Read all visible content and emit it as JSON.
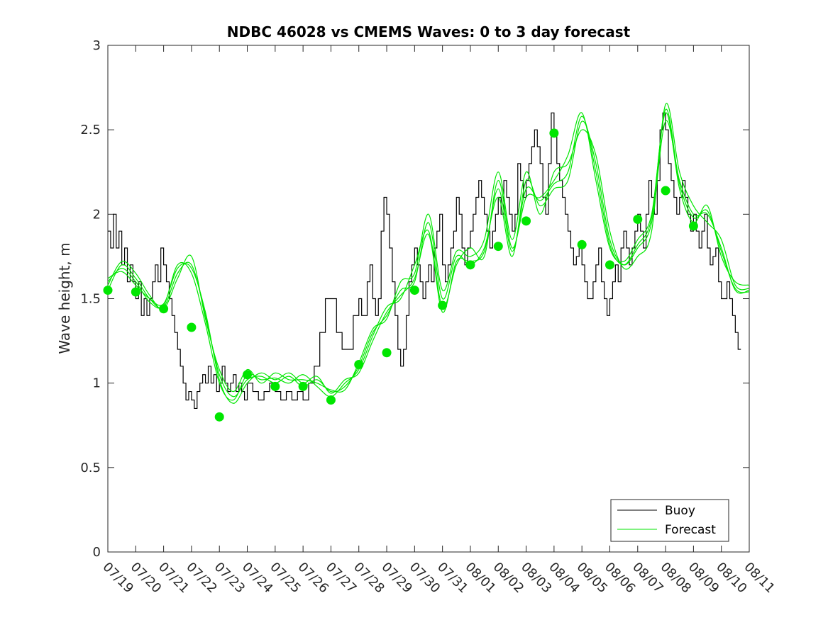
{
  "chart_data": {
    "type": "line",
    "title": "NDBC 46028 vs CMEMS Waves: 0 to 3 day forecast",
    "ylabel": "Wave height, m",
    "xlabel": "",
    "ylim": [
      0,
      3
    ],
    "y_ticks": [
      "0",
      "0.5",
      "1",
      "1.5",
      "2",
      "2.5",
      "3"
    ],
    "x_tick_labels": [
      "07/19",
      "07/20",
      "07/21",
      "07/22",
      "07/23",
      "07/24",
      "07/25",
      "07/26",
      "07/27",
      "07/28",
      "07/29",
      "07/30",
      "07/31",
      "08/01",
      "08/02",
      "08/03",
      "08/04",
      "08/05",
      "08/06",
      "08/07",
      "08/08",
      "08/09",
      "08/10",
      "08/11"
    ],
    "legend": {
      "position": "bottom-right",
      "entries": [
        {
          "name": "Buoy",
          "color": "#000000"
        },
        {
          "name": "Forecast",
          "color": "#00e600"
        }
      ]
    },
    "colors": {
      "buoy": "#000000",
      "forecast": "#00e600",
      "marker": "#00e600"
    },
    "buoy": {
      "day_offsets": [
        0,
        0.1,
        0.2,
        0.3,
        0.4,
        0.5,
        0.6,
        0.7,
        0.8,
        0.9,
        1,
        1.1,
        1.2,
        1.3,
        1.4,
        1.5,
        1.6,
        1.7,
        1.8,
        1.9,
        2,
        2.1,
        2.2,
        2.3,
        2.4,
        2.5,
        2.6,
        2.7,
        2.8,
        2.9,
        3,
        3.1,
        3.2,
        3.3,
        3.4,
        3.5,
        3.6,
        3.7,
        3.8,
        3.9,
        4,
        4.1,
        4.2,
        4.3,
        4.4,
        4.5,
        4.6,
        4.7,
        4.8,
        4.9,
        5,
        5.2,
        5.4,
        5.6,
        5.8,
        6,
        6.2,
        6.4,
        6.6,
        6.8,
        7,
        7.2,
        7.4,
        7.6,
        7.8,
        8,
        8.2,
        8.4,
        8.6,
        8.8,
        9,
        9.1,
        9.2,
        9.3,
        9.4,
        9.5,
        9.6,
        9.7,
        9.8,
        9.9,
        10,
        10.1,
        10.2,
        10.3,
        10.4,
        10.5,
        10.6,
        10.7,
        10.8,
        10.9,
        11,
        11.1,
        11.2,
        11.3,
        11.4,
        11.5,
        11.6,
        11.7,
        11.8,
        11.9,
        12,
        12.1,
        12.2,
        12.3,
        12.4,
        12.5,
        12.6,
        12.7,
        12.8,
        12.9,
        13,
        13.1,
        13.2,
        13.3,
        13.4,
        13.5,
        13.6,
        13.7,
        13.8,
        13.9,
        14,
        14.1,
        14.2,
        14.3,
        14.4,
        14.5,
        14.6,
        14.7,
        14.8,
        14.9,
        15,
        15.1,
        15.2,
        15.3,
        15.4,
        15.5,
        15.6,
        15.7,
        15.8,
        15.9,
        16,
        16.1,
        16.2,
        16.3,
        16.4,
        16.5,
        16.6,
        16.7,
        16.8,
        16.9,
        17,
        17.1,
        17.2,
        17.3,
        17.4,
        17.5,
        17.6,
        17.7,
        17.8,
        17.9,
        18,
        18.1,
        18.2,
        18.3,
        18.4,
        18.5,
        18.6,
        18.7,
        18.8,
        18.9,
        19,
        19.1,
        19.2,
        19.3,
        19.4,
        19.5,
        19.6,
        19.7,
        19.8,
        19.9,
        20,
        20.1,
        20.2,
        20.3,
        20.4,
        20.5,
        20.6,
        20.7,
        20.8,
        20.9,
        21,
        21.1,
        21.2,
        21.3,
        21.4,
        21.5,
        21.6,
        21.7,
        21.8,
        21.9,
        22,
        22.1,
        22.2,
        22.3,
        22.4,
        22.5,
        22.6,
        22.7,
        22.8,
        22.9,
        23
      ],
      "values": [
        1.9,
        1.8,
        2.0,
        1.8,
        1.9,
        1.7,
        1.8,
        1.6,
        1.7,
        1.6,
        1.5,
        1.6,
        1.4,
        1.5,
        1.4,
        1.5,
        1.6,
        1.7,
        1.6,
        1.8,
        1.7,
        1.6,
        1.5,
        1.4,
        1.3,
        1.2,
        1.1,
        1.0,
        0.9,
        0.95,
        0.9,
        0.85,
        0.95,
        1.0,
        1.05,
        1.0,
        1.1,
        1.0,
        1.05,
        0.95,
        1.0,
        1.1,
        1.0,
        0.95,
        1.0,
        1.05,
        0.95,
        1.0,
        0.95,
        0.9,
        1.0,
        0.95,
        0.9,
        0.95,
        1.0,
        0.95,
        0.9,
        0.95,
        0.9,
        0.95,
        0.9,
        1.0,
        1.1,
        1.3,
        1.5,
        1.5,
        1.3,
        1.2,
        1.2,
        1.4,
        1.5,
        1.4,
        1.4,
        1.6,
        1.7,
        1.5,
        1.4,
        1.5,
        1.9,
        2.1,
        2.0,
        1.8,
        1.6,
        1.4,
        1.2,
        1.1,
        1.2,
        1.4,
        1.6,
        1.7,
        1.8,
        1.7,
        1.6,
        1.5,
        1.6,
        1.7,
        1.6,
        1.8,
        1.9,
        2.0,
        1.7,
        1.6,
        1.7,
        1.8,
        1.9,
        2.1,
        2.0,
        1.8,
        1.7,
        1.8,
        1.9,
        2.0,
        2.1,
        2.2,
        2.1,
        2.0,
        1.9,
        1.8,
        1.9,
        2.0,
        2.1,
        2.0,
        2.2,
        2.1,
        2.0,
        1.9,
        2.0,
        2.3,
        2.2,
        2.1,
        2.2,
        2.3,
        2.4,
        2.5,
        2.4,
        2.3,
        2.1,
        2.0,
        2.3,
        2.6,
        2.5,
        2.3,
        2.2,
        2.1,
        2.0,
        1.9,
        1.8,
        1.7,
        1.75,
        1.8,
        1.7,
        1.6,
        1.5,
        1.5,
        1.6,
        1.7,
        1.8,
        1.6,
        1.5,
        1.4,
        1.5,
        1.6,
        1.7,
        1.6,
        1.8,
        1.9,
        1.8,
        1.7,
        1.8,
        1.9,
        2.0,
        1.9,
        1.8,
        2.0,
        2.2,
        2.1,
        2.0,
        2.2,
        2.5,
        2.6,
        2.5,
        2.3,
        2.2,
        2.1,
        2.0,
        2.1,
        2.2,
        2.1,
        2.0,
        1.9,
        2.0,
        1.9,
        1.8,
        1.9,
        2.0,
        1.8,
        1.7,
        1.75,
        1.8,
        1.6,
        1.5,
        1.5,
        1.6,
        1.5,
        1.4,
        1.3,
        1.2
      ]
    },
    "forecast": {
      "day_offsets": [
        0,
        0.5,
        1,
        1.5,
        2,
        2.5,
        3,
        3.5,
        4,
        4.5,
        5,
        5.5,
        6,
        6.5,
        7,
        7.5,
        8,
        8.5,
        9,
        9.5,
        10,
        10.5,
        11,
        11.5,
        12,
        12.5,
        13,
        13.5,
        14,
        14.5,
        15,
        15.5,
        16,
        16.5,
        17,
        17.5,
        18,
        18.5,
        19,
        19.5,
        20,
        20.5,
        21,
        21.5,
        22,
        22.5,
        23
      ],
      "series": [
        {
          "values": [
            1.55,
            1.7,
            1.62,
            1.5,
            1.45,
            1.65,
            1.7,
            1.4,
            1.05,
            0.92,
            1.02,
            1.04,
            1.0,
            1.04,
            0.98,
            1.02,
            0.95,
            0.98,
            1.1,
            1.3,
            1.4,
            1.55,
            1.6,
            1.95,
            1.5,
            1.75,
            1.7,
            1.8,
            2.1,
            1.75,
            2.2,
            2.05,
            2.15,
            2.2,
            2.55,
            2.3,
            1.85,
            1.7,
            1.8,
            1.95,
            2.55,
            2.2,
            2.0,
            2.0,
            1.8,
            1.55,
            1.55
          ]
        },
        {
          "values": [
            1.6,
            1.68,
            1.6,
            1.48,
            1.46,
            1.7,
            1.65,
            1.35,
            1.0,
            0.9,
            1.05,
            1.02,
            1.03,
            1.0,
            1.05,
            0.98,
            0.92,
            1.0,
            1.08,
            1.28,
            1.45,
            1.5,
            1.7,
            1.9,
            1.45,
            1.7,
            1.8,
            1.75,
            2.2,
            1.8,
            2.1,
            2.1,
            2.2,
            2.35,
            2.6,
            2.2,
            1.8,
            1.72,
            1.85,
            2.0,
            2.6,
            2.15,
            1.95,
            2.05,
            1.75,
            1.6,
            1.58
          ]
        },
        {
          "values": [
            1.58,
            1.72,
            1.65,
            1.52,
            1.44,
            1.62,
            1.75,
            1.38,
            1.08,
            0.95,
            1.08,
            1.0,
            1.06,
            1.02,
            1.02,
            1.0,
            0.96,
            0.96,
            1.12,
            1.32,
            1.38,
            1.6,
            1.65,
            2.0,
            1.55,
            1.78,
            1.75,
            1.85,
            2.25,
            1.85,
            2.25,
            2.0,
            2.25,
            2.3,
            2.5,
            2.35,
            1.9,
            1.68,
            1.75,
            1.9,
            2.65,
            2.25,
            2.05,
            1.95,
            1.85,
            1.58,
            1.56
          ]
        },
        {
          "values": [
            1.62,
            1.66,
            1.58,
            1.5,
            1.47,
            1.68,
            1.68,
            1.42,
            1.02,
            0.88,
            1.0,
            1.06,
            1.02,
            1.06,
            1.0,
            1.04,
            0.94,
            1.02,
            1.06,
            1.25,
            1.42,
            1.52,
            1.62,
            1.88,
            1.42,
            1.72,
            1.72,
            1.78,
            2.15,
            1.78,
            2.15,
            2.08,
            2.18,
            2.25,
            2.58,
            2.25,
            1.82,
            1.7,
            1.82,
            1.98,
            2.62,
            2.18,
            1.98,
            2.02,
            1.78,
            1.56,
            1.54
          ]
        }
      ],
      "markers": {
        "day_offsets": [
          0,
          1,
          2,
          3,
          4,
          5,
          6,
          7,
          8,
          9,
          10,
          11,
          12,
          13,
          14,
          15,
          16,
          17,
          18,
          19,
          20,
          21
        ],
        "values": [
          1.55,
          1.54,
          1.44,
          1.33,
          0.8,
          1.05,
          0.98,
          0.98,
          0.9,
          1.11,
          1.18,
          1.55,
          1.46,
          1.7,
          1.81,
          1.96,
          2.48,
          1.82,
          1.7,
          1.97,
          2.14,
          1.93
        ]
      }
    }
  }
}
